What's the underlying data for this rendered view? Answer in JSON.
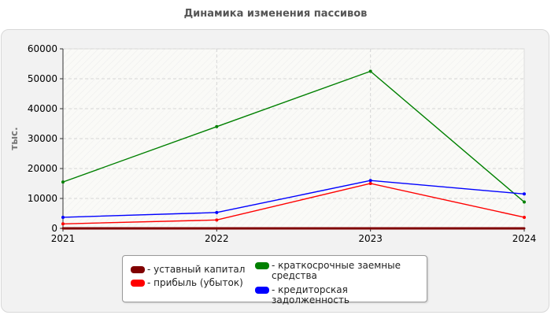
{
  "title": "Динамика изменения пассивов",
  "chart_data": {
    "type": "line",
    "title": "Динамика изменения пассивов",
    "xlabel": "",
    "ylabel": "тыс.",
    "x": [
      "2021",
      "2022",
      "2023",
      "2024"
    ],
    "ylim": [
      0,
      60000
    ],
    "yticks": [
      0,
      10000,
      20000,
      30000,
      40000,
      50000,
      60000
    ],
    "grid": true,
    "legend_position": "bottom",
    "series": [
      {
        "name": "- уставный капитал",
        "color": "#800000",
        "values": [
          10,
          10,
          10,
          10
        ]
      },
      {
        "name": "- прибыль (убыток)",
        "color": "#ff0000",
        "values": [
          1500,
          2800,
          15000,
          3700
        ]
      },
      {
        "name": "- краткосрочные заемные средства",
        "color": "#008000",
        "values": [
          15500,
          34000,
          52500,
          8800
        ]
      },
      {
        "name": "- кредиторская задолженность",
        "color": "#0000ff",
        "values": [
          3700,
          5300,
          16000,
          11500
        ]
      }
    ]
  }
}
